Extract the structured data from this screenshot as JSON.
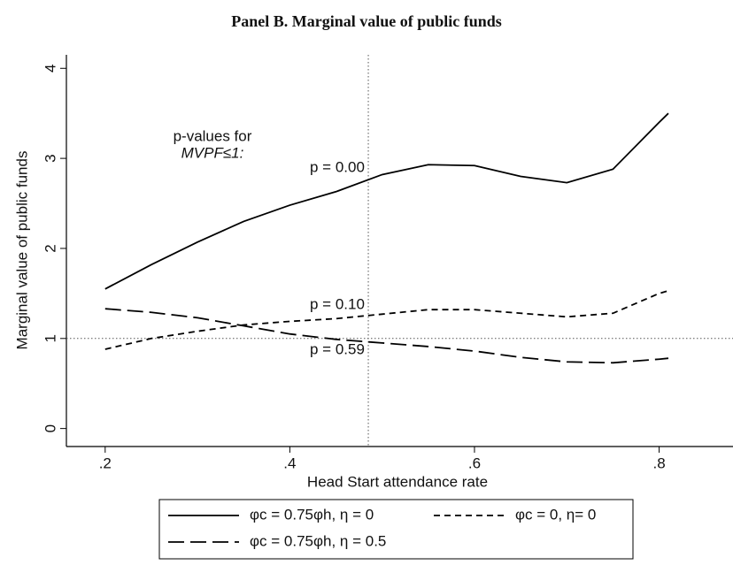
{
  "chart_data": {
    "type": "line",
    "title": "Panel B. Marginal value of public funds",
    "x_label": "Head Start attendance rate",
    "y_label": "Marginal value of public funds",
    "x": [
      0.2,
      0.25,
      0.3,
      0.35,
      0.4,
      0.45,
      0.5,
      0.55,
      0.6,
      0.65,
      0.7,
      0.75,
      0.8,
      0.81
    ],
    "series": [
      {
        "name": "φc = 0.75φh, η = 0",
        "color": "#000000",
        "dash": "solid",
        "values": [
          1.55,
          1.82,
          2.07,
          2.3,
          2.48,
          2.63,
          2.82,
          2.93,
          2.92,
          2.8,
          2.73,
          2.88,
          3.4,
          3.5
        ]
      },
      {
        "name": "φc = 0, η= 0",
        "color": "#000000",
        "dash": "short",
        "values": [
          0.88,
          1.0,
          1.08,
          1.15,
          1.19,
          1.22,
          1.27,
          1.32,
          1.32,
          1.28,
          1.24,
          1.28,
          1.5,
          1.53
        ]
      },
      {
        "name": "φc = 0.75φh, η = 0.5",
        "color": "#000000",
        "dash": "long",
        "values": [
          1.33,
          1.29,
          1.23,
          1.14,
          1.05,
          0.99,
          0.95,
          0.91,
          0.86,
          0.79,
          0.74,
          0.73,
          0.77,
          0.78
        ]
      }
    ],
    "xlim": [
      0.158,
      0.88
    ],
    "ylim": [
      -0.2,
      4.15
    ],
    "xticks": [
      {
        "value": 0.2,
        "label": ".2"
      },
      {
        "value": 0.4,
        "label": ".4"
      },
      {
        "value": 0.6,
        "label": ".6"
      },
      {
        "value": 0.8,
        "label": ".8"
      }
    ],
    "yticks": [
      0,
      1,
      2,
      3,
      4
    ],
    "reference_x": 0.485,
    "reference_y": 1,
    "annotations": [
      "p-values for",
      "MVPF≤1:",
      "p = 0.00",
      "p = 0.10",
      "p = 0.59"
    ],
    "legend": "bottom"
  }
}
